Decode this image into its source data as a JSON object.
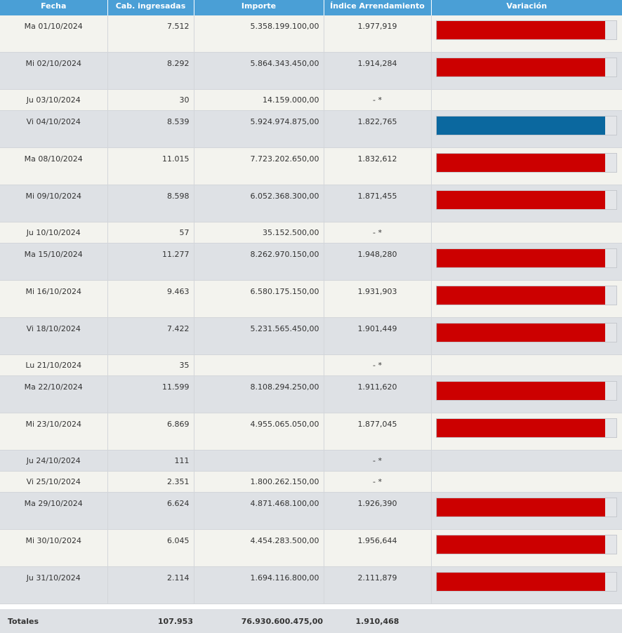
{
  "colors": {
    "header_bg": "#4a9fd6",
    "bar_red": "#cc0000",
    "bar_blue": "#0b689f",
    "bar_track": "#e4e6e9"
  },
  "headers": [
    "Fecha",
    "Cab. ingresadas",
    "Importe",
    "Índice Arrendamiento",
    "Variación"
  ],
  "rows": [
    {
      "fecha": "Ma 01/10/2024",
      "cab": "7.512",
      "importe": "5.358.199.100,00",
      "indice": "1.977,919",
      "bar": "red",
      "fill": 0.94
    },
    {
      "fecha": "Mi 02/10/2024",
      "cab": "8.292",
      "importe": "5.864.343.450,00",
      "indice": "1.914,284",
      "bar": "red",
      "fill": 0.94
    },
    {
      "fecha": "Ju 03/10/2024",
      "cab": "30",
      "importe": "14.159.000,00",
      "indice": "- *",
      "bar": null
    },
    {
      "fecha": "Vi 04/10/2024",
      "cab": "8.539",
      "importe": "5.924.974.875,00",
      "indice": "1.822,765",
      "bar": "blue",
      "fill": 0.94
    },
    {
      "fecha": "Ma 08/10/2024",
      "cab": "11.015",
      "importe": "7.723.202.650,00",
      "indice": "1.832,612",
      "bar": "red",
      "fill": 0.94
    },
    {
      "fecha": "Mi 09/10/2024",
      "cab": "8.598",
      "importe": "6.052.368.300,00",
      "indice": "1.871,455",
      "bar": "red",
      "fill": 0.94
    },
    {
      "fecha": "Ju 10/10/2024",
      "cab": "57",
      "importe": "35.152.500,00",
      "indice": "- *",
      "bar": null
    },
    {
      "fecha": "Ma 15/10/2024",
      "cab": "11.277",
      "importe": "8.262.970.150,00",
      "indice": "1.948,280",
      "bar": "red",
      "fill": 0.94
    },
    {
      "fecha": "Mi 16/10/2024",
      "cab": "9.463",
      "importe": "6.580.175.150,00",
      "indice": "1.931,903",
      "bar": "red",
      "fill": 0.94
    },
    {
      "fecha": "Vi 18/10/2024",
      "cab": "7.422",
      "importe": "5.231.565.450,00",
      "indice": "1.901,449",
      "bar": "red",
      "fill": 0.94
    },
    {
      "fecha": "Lu 21/10/2024",
      "cab": "35",
      "importe": "",
      "indice": "- *",
      "bar": null
    },
    {
      "fecha": "Ma 22/10/2024",
      "cab": "11.599",
      "importe": "8.108.294.250,00",
      "indice": "1.911,620",
      "bar": "red",
      "fill": 0.94
    },
    {
      "fecha": "Mi 23/10/2024",
      "cab": "6.869",
      "importe": "4.955.065.050,00",
      "indice": "1.877,045",
      "bar": "red",
      "fill": 0.94
    },
    {
      "fecha": "Ju 24/10/2024",
      "cab": "111",
      "importe": "",
      "indice": "- *",
      "bar": null
    },
    {
      "fecha": "Vi 25/10/2024",
      "cab": "2.351",
      "importe": "1.800.262.150,00",
      "indice": "- *",
      "bar": null
    },
    {
      "fecha": "Ma 29/10/2024",
      "cab": "6.624",
      "importe": "4.871.468.100,00",
      "indice": "1.926,390",
      "bar": "red",
      "fill": 0.94
    },
    {
      "fecha": "Mi 30/10/2024",
      "cab": "6.045",
      "importe": "4.454.283.500,00",
      "indice": "1.956,644",
      "bar": "red",
      "fill": 0.94
    },
    {
      "fecha": "Ju 31/10/2024",
      "cab": "2.114",
      "importe": "1.694.116.800,00",
      "indice": "2.111,879",
      "bar": "red",
      "fill": 0.94
    }
  ],
  "totals": {
    "label": "Totales",
    "cab": "107.953",
    "importe": "76.930.600.475,00",
    "indice": "1.910,468"
  }
}
